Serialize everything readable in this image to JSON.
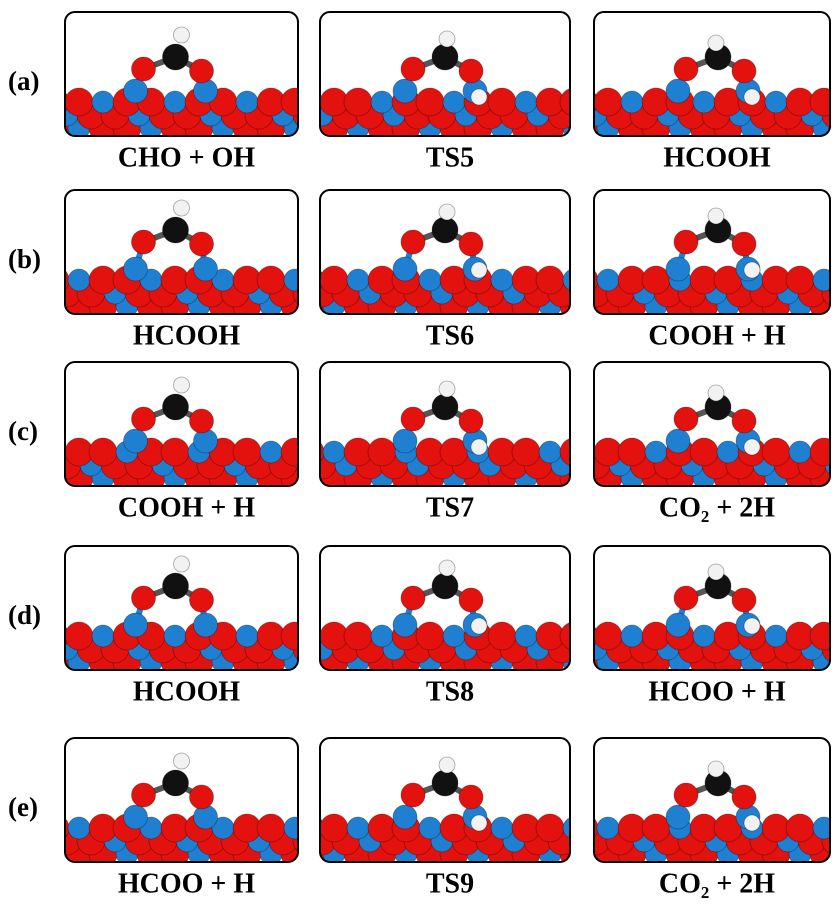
{
  "rows": [
    {
      "label": "(a)",
      "panels": [
        "CHO + OH",
        "TS5",
        "HCOOH"
      ]
    },
    {
      "label": "(b)",
      "panels": [
        "HCOOH",
        "TS6",
        "COOH + H"
      ]
    },
    {
      "label": "(c)",
      "panels": [
        "COOH + H",
        "TS7",
        "CO₂ + 2H"
      ]
    },
    {
      "label": "(d)",
      "panels": [
        "HCOOH",
        "TS8",
        "HCOO + H"
      ]
    },
    {
      "label": "(e)",
      "panels": [
        "HCOO + H",
        "TS9",
        "CO₂ + 2H"
      ]
    }
  ]
}
